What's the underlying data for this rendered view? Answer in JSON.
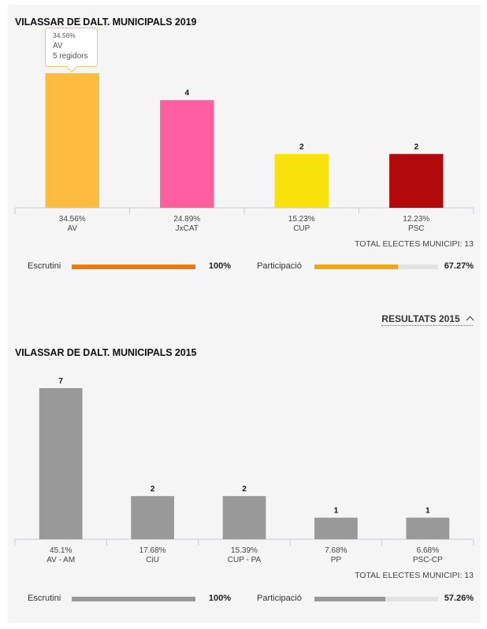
{
  "chart_data": [
    {
      "type": "bar",
      "title": "VILASSAR DE DALT. MUNICIPALS 2019",
      "categories": [
        "AV",
        "JxCAT",
        "CUP",
        "PSC"
      ],
      "percent_labels": [
        "34.56%",
        "24.89%",
        "15.23%",
        "12.23%"
      ],
      "values": [
        5,
        4,
        2,
        2
      ],
      "colors": [
        "#fbbc40",
        "#ff5f9e",
        "#f9e10a",
        "#b20a0a"
      ],
      "ylim": [
        0,
        5
      ],
      "total_label": "TOTAL ELECTES MUNICIPI: 13",
      "escrutini": {
        "label": "Escrutini",
        "value": 100,
        "text": "100%",
        "color": "#ee7a12"
      },
      "participacio": {
        "label": "Participació",
        "value": 67.27,
        "text": "67.27%",
        "color": "#f2a515"
      },
      "tooltip": {
        "percent": "34.56%",
        "party": "AV",
        "seats": "5 regidors"
      }
    },
    {
      "type": "bar",
      "title": "VILASSAR DE DALT. MUNICIPALS 2015",
      "categories": [
        "AV - AM",
        "CiU",
        "CUP - PA",
        "PP",
        "PSC-CP"
      ],
      "percent_labels": [
        "45.1%",
        "17.68%",
        "15.39%",
        "7.68%",
        "6.68%"
      ],
      "values": [
        7,
        2,
        2,
        1,
        1
      ],
      "colors": [
        "#999999",
        "#999999",
        "#999999",
        "#999999",
        "#999999"
      ],
      "ylim": [
        0,
        7
      ],
      "total_label": "TOTAL ELECTES MUNICIPI: 13",
      "escrutini": {
        "label": "Escrutini",
        "value": 100,
        "text": "100%",
        "color": "#999999"
      },
      "participacio": {
        "label": "Participació",
        "value": 57.26,
        "text": "57.26%",
        "color": "#999999"
      }
    }
  ],
  "toggle": {
    "label": "RESULTATS 2015",
    "icon": "chevron-up-icon"
  }
}
